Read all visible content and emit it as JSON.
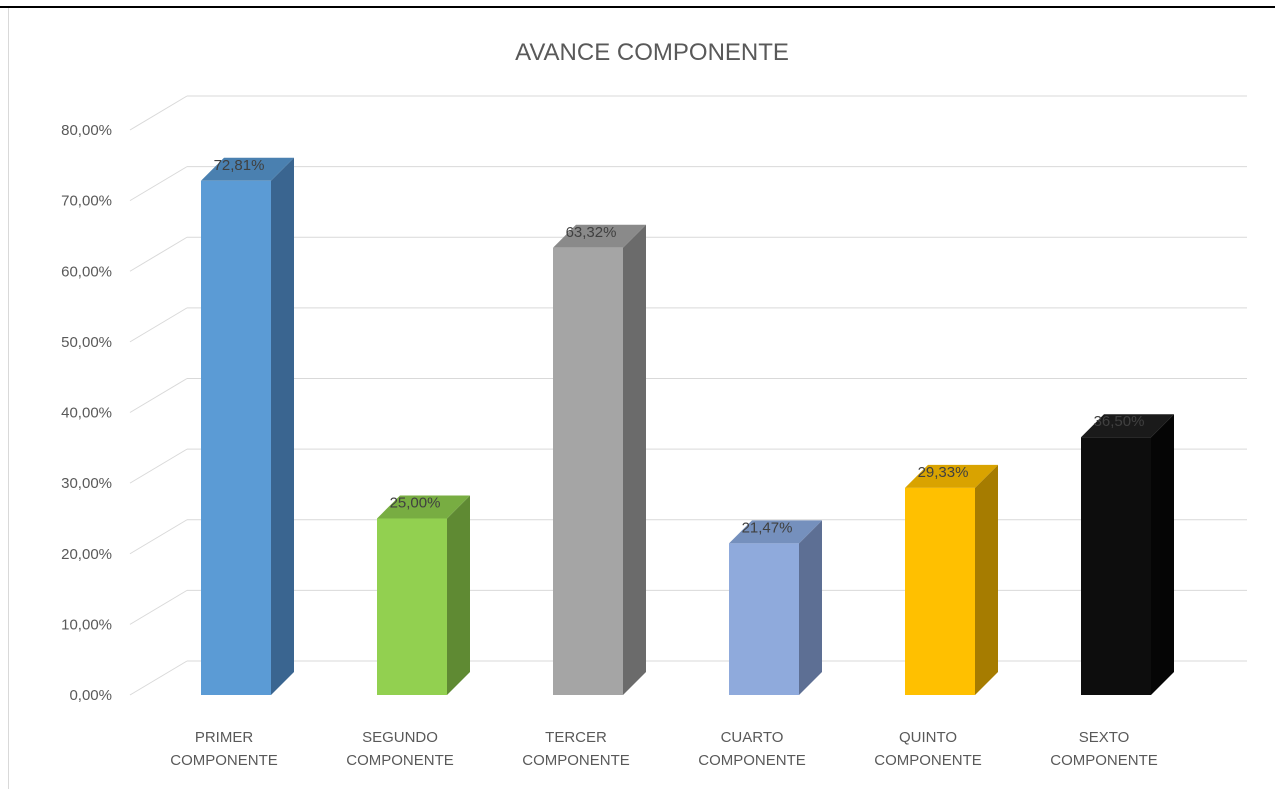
{
  "chart_data": {
    "type": "bar",
    "style": "3d-column",
    "title": "AVANCE COMPONENTE",
    "xlabel": "",
    "ylabel": "",
    "ylim": [
      0,
      80
    ],
    "ytick_labels": [
      "0,00%",
      "10,00%",
      "20,00%",
      "30,00%",
      "40,00%",
      "50,00%",
      "60,00%",
      "70,00%",
      "80,00%"
    ],
    "categories": [
      [
        "PRIMER",
        "COMPONENTE"
      ],
      [
        "SEGUNDO",
        "COMPONENTE"
      ],
      [
        "TERCER",
        "COMPONENTE"
      ],
      [
        "CUARTO",
        "COMPONENTE"
      ],
      [
        "QUINTO",
        "COMPONENTE"
      ],
      [
        "SEXTO",
        "COMPONENTE"
      ]
    ],
    "values": [
      72.81,
      25.0,
      63.32,
      21.47,
      29.33,
      36.5
    ],
    "data_labels": [
      "72,81%",
      "25,00%",
      "63,32%",
      "21,47%",
      "29,33%",
      "36,50%"
    ],
    "colors": [
      "#5b9bd5",
      "#92d050",
      "#a5a5a5",
      "#8faadc",
      "#ffc000",
      "#0d0d0d"
    ],
    "side_colors": [
      "#3a6590",
      "#5f8a33",
      "#6b6b6b",
      "#5d6f94",
      "#a67c00",
      "#050505"
    ],
    "top_colors": [
      "#4a80b0",
      "#78ad42",
      "#8a8a8a",
      "#7590bd",
      "#d9a300",
      "#1a1a1a"
    ],
    "grid": true,
    "legend": "none"
  }
}
